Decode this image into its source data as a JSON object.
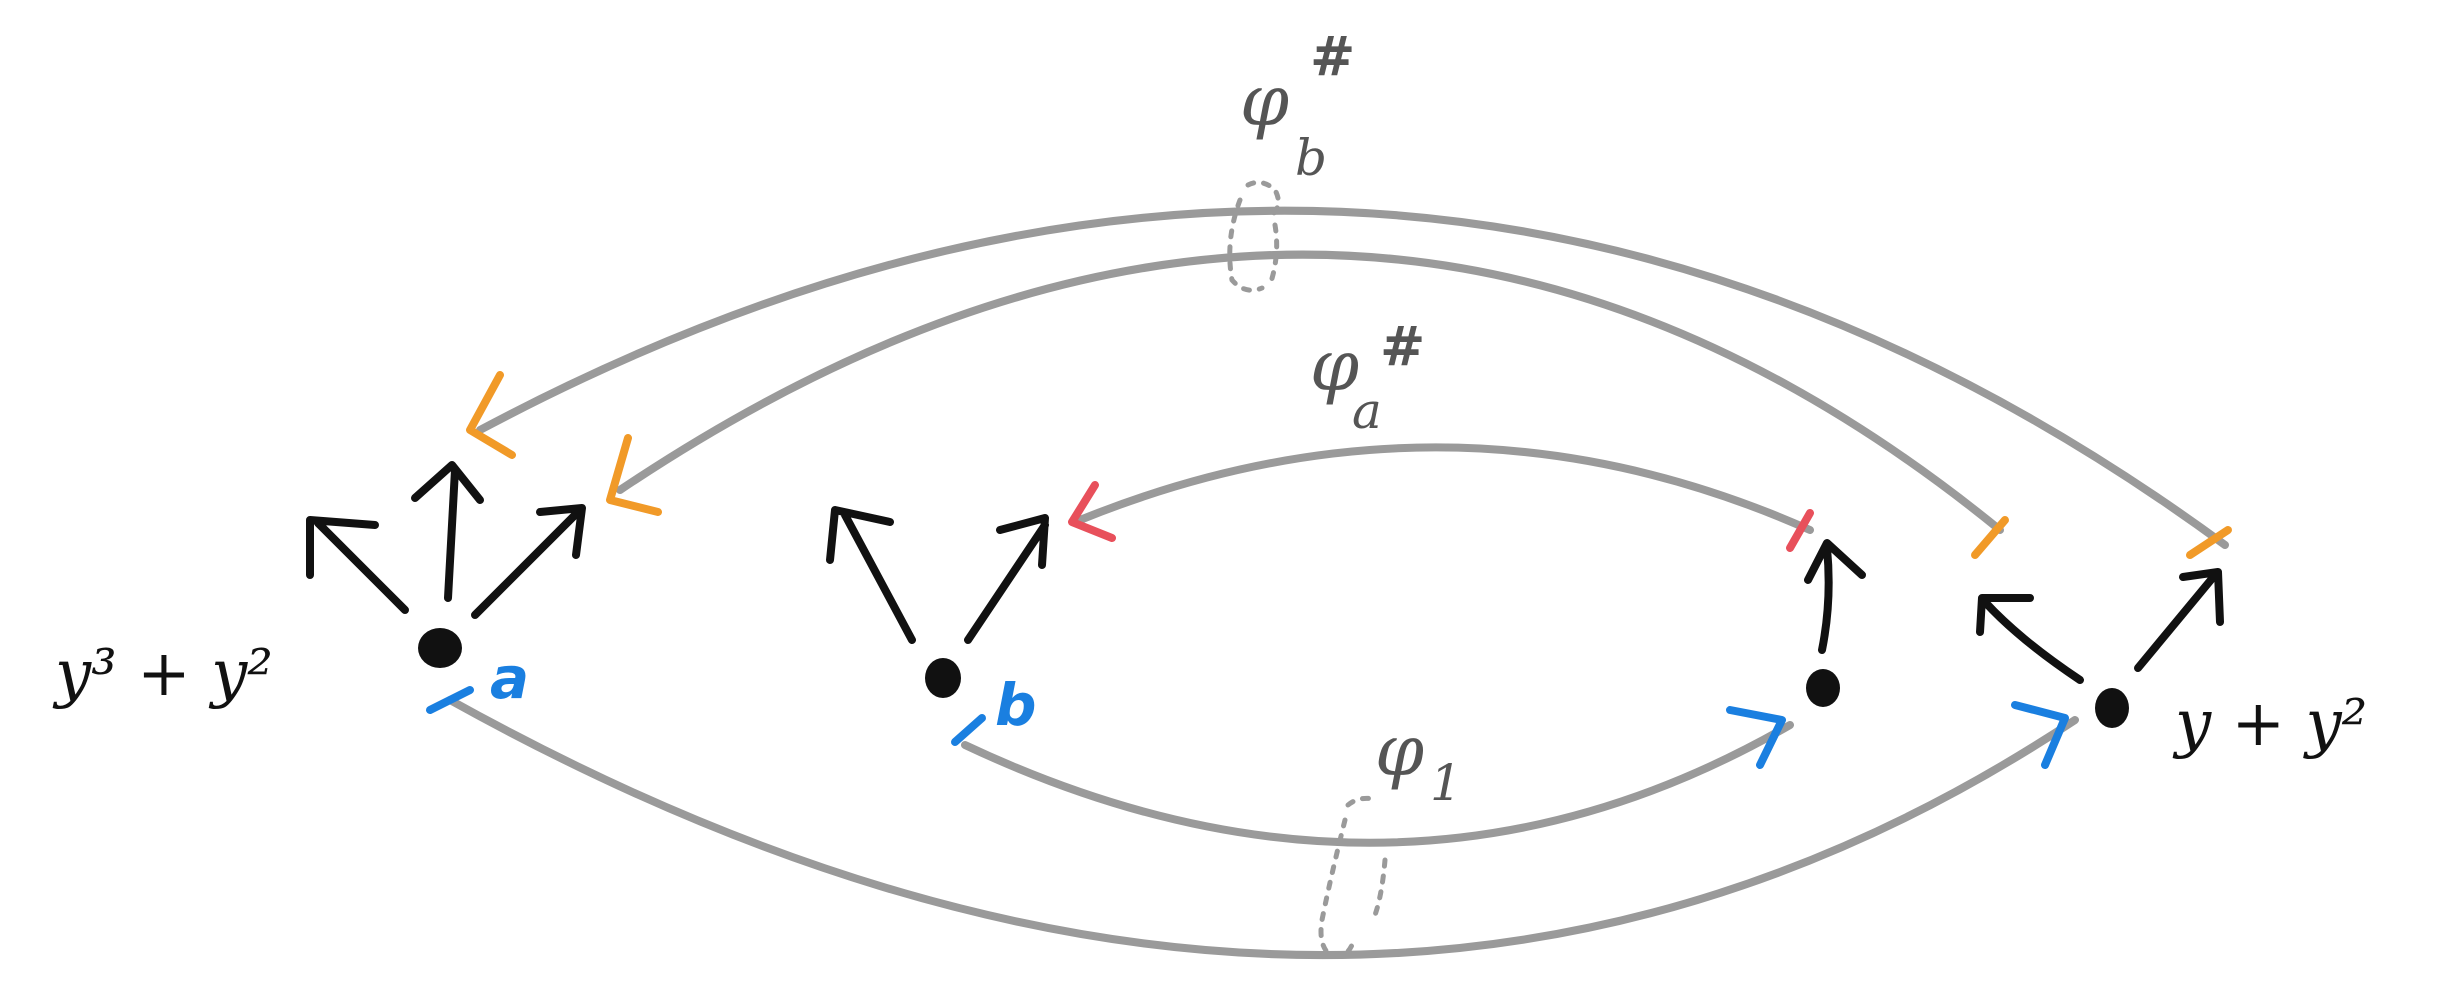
{
  "labels": {
    "left_poly": "y³ + y²",
    "right_poly": "y + y²",
    "point_a": "a",
    "point_b": "b",
    "phi_b_sharp": {
      "base": "φ",
      "sub": "b",
      "sup": "#"
    },
    "phi_a_sharp": {
      "base": "φ",
      "sub": "a",
      "sup": "#"
    },
    "phi_1": {
      "base": "φ",
      "sub": "1"
    }
  },
  "colors": {
    "ink": "#111111",
    "map_gray": "#9a9a9a",
    "label_gray": "#555555",
    "blue": "#1a7fe0",
    "orange": "#f19a28",
    "red": "#e8505b"
  }
}
